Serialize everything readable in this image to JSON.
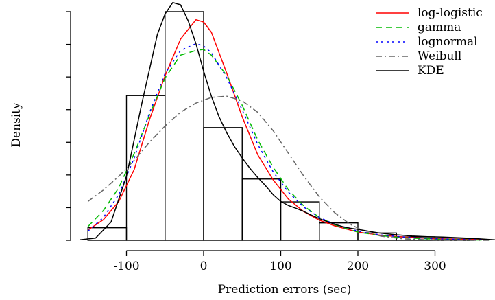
{
  "chart_data": {
    "type": "histogram",
    "title": "",
    "xlabel": "Prediction errors (sec)",
    "ylabel": "Density",
    "xlim": [
      -160,
      380
    ],
    "ylim": [
      0,
      1.0
    ],
    "x_ticks": [
      -100,
      0,
      100,
      200,
      300
    ],
    "x_tick_labels": [
      "-100",
      "0",
      "100",
      "200",
      "300"
    ],
    "y_tick_count": 8,
    "grid": false,
    "legend_position": "top-right",
    "histogram": {
      "bin_edges": [
        -150,
        -100,
        -50,
        0,
        50,
        100,
        150,
        200,
        250,
        300,
        350
      ],
      "heights": [
        0.055,
        0.633,
        1.0,
        0.493,
        0.268,
        0.168,
        0.076,
        0.032,
        0.015,
        0.006
      ]
    },
    "series": [
      {
        "name": "log-logistic",
        "color": "#ff0000",
        "dash": "solid",
        "x": [
          -150,
          -130,
          -110,
          -90,
          -70,
          -50,
          -30,
          -10,
          0,
          10,
          30,
          50,
          70,
          90,
          110,
          130,
          150,
          170,
          200,
          230,
          260,
          300,
          340,
          370
        ],
        "y": [
          0.045,
          0.09,
          0.17,
          0.31,
          0.53,
          0.72,
          0.88,
          0.965,
          0.955,
          0.91,
          0.73,
          0.54,
          0.375,
          0.265,
          0.18,
          0.125,
          0.088,
          0.063,
          0.036,
          0.022,
          0.014,
          0.007,
          0.004,
          0.003
        ]
      },
      {
        "name": "gamma",
        "color": "#00bb00",
        "dash": "9,6",
        "x": [
          -150,
          -130,
          -110,
          -90,
          -70,
          -50,
          -30,
          -10,
          0,
          10,
          30,
          50,
          70,
          90,
          110,
          130,
          150,
          170,
          200,
          230,
          260,
          300,
          340,
          370
        ],
        "y": [
          0.06,
          0.13,
          0.23,
          0.38,
          0.55,
          0.71,
          0.81,
          0.83,
          0.835,
          0.81,
          0.72,
          0.59,
          0.44,
          0.32,
          0.22,
          0.15,
          0.1,
          0.068,
          0.036,
          0.02,
          0.011,
          0.005,
          0.002,
          0.001
        ]
      },
      {
        "name": "lognormal",
        "color": "#0000ff",
        "dash": "3,5",
        "x": [
          -150,
          -130,
          -110,
          -90,
          -70,
          -50,
          -30,
          -10,
          0,
          10,
          30,
          50,
          70,
          90,
          110,
          130,
          150,
          170,
          200,
          230,
          260,
          300,
          340,
          370
        ],
        "y": [
          0.04,
          0.1,
          0.2,
          0.36,
          0.56,
          0.73,
          0.83,
          0.86,
          0.85,
          0.82,
          0.71,
          0.57,
          0.42,
          0.3,
          0.21,
          0.145,
          0.1,
          0.07,
          0.04,
          0.023,
          0.014,
          0.007,
          0.003,
          0.002
        ]
      },
      {
        "name": "Weibull",
        "color": "#666666",
        "dash": "9,4,2,4",
        "x": [
          -150,
          -130,
          -110,
          -90,
          -70,
          -50,
          -30,
          -10,
          10,
          30,
          50,
          70,
          90,
          110,
          130,
          150,
          170,
          190,
          210,
          230,
          260,
          300,
          340,
          370
        ],
        "y": [
          0.17,
          0.22,
          0.28,
          0.35,
          0.43,
          0.5,
          0.56,
          0.6,
          0.625,
          0.63,
          0.61,
          0.56,
          0.48,
          0.38,
          0.28,
          0.19,
          0.12,
          0.07,
          0.037,
          0.018,
          0.006,
          0.0015,
          0.0003,
          0.0001
        ]
      },
      {
        "name": "KDE",
        "color": "#000000",
        "dash": "solid",
        "x": [
          -160,
          -140,
          -120,
          -100,
          -80,
          -60,
          -50,
          -40,
          -30,
          -20,
          -10,
          0,
          10,
          20,
          30,
          40,
          50,
          60,
          70,
          80,
          90,
          100,
          110,
          120,
          130,
          140,
          150,
          160,
          170,
          180,
          190,
          200,
          210,
          220,
          230,
          250,
          270,
          290,
          310,
          330,
          350,
          370,
          380
        ],
        "y": [
          0.002,
          0.01,
          0.08,
          0.28,
          0.6,
          0.9,
          0.99,
          1.04,
          1.03,
          0.96,
          0.86,
          0.74,
          0.63,
          0.54,
          0.47,
          0.41,
          0.36,
          0.315,
          0.275,
          0.24,
          0.2,
          0.17,
          0.152,
          0.14,
          0.126,
          0.11,
          0.095,
          0.082,
          0.07,
          0.06,
          0.053,
          0.048,
          0.042,
          0.036,
          0.031,
          0.024,
          0.019,
          0.016,
          0.014,
          0.011,
          0.008,
          0.004,
          0.002
        ]
      }
    ]
  }
}
